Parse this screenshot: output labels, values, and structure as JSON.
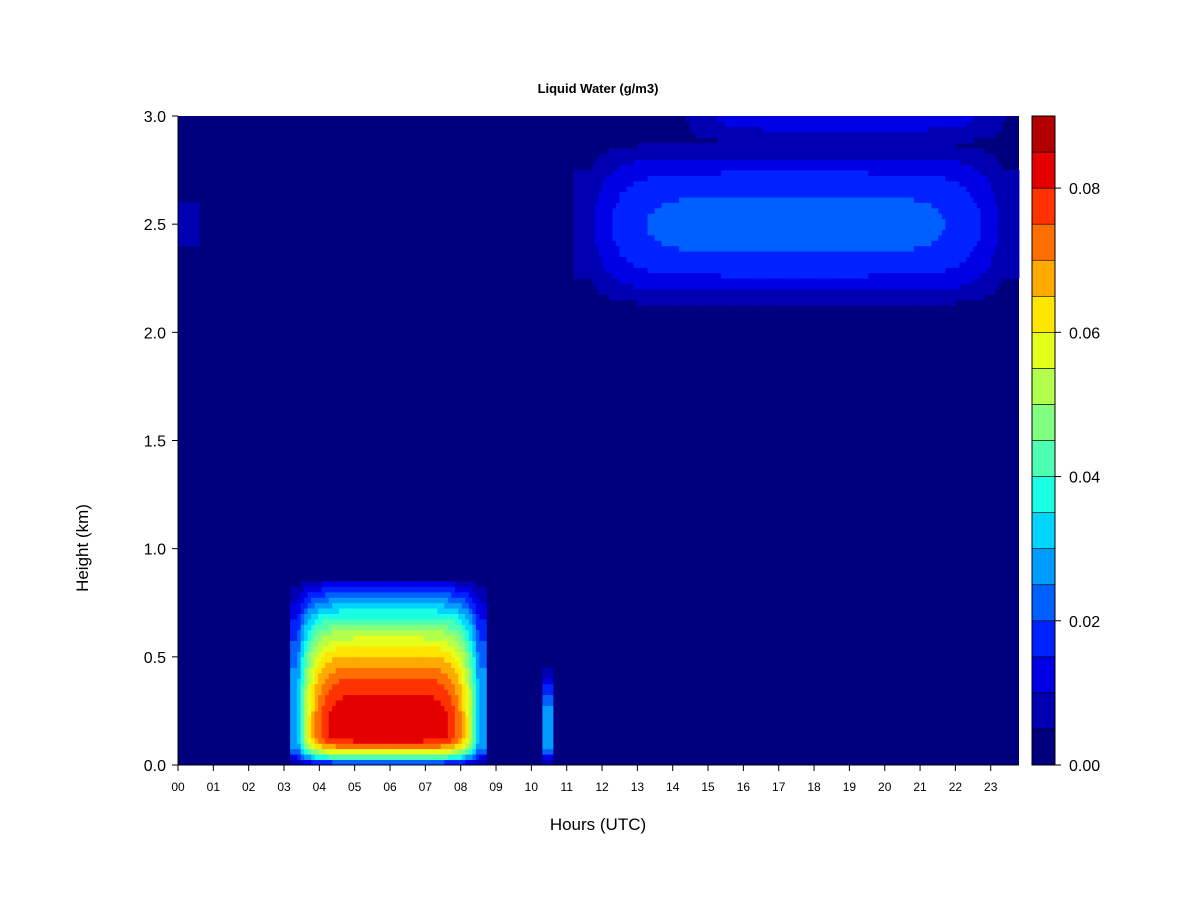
{
  "chart_data": {
    "type": "heatmap",
    "title": "Liquid Water (g/m3)",
    "xlabel": "Hours (UTC)",
    "ylabel": "Height (km)",
    "xlim": [
      0,
      23.8
    ],
    "ylim": [
      0,
      3.0
    ],
    "x_ticks": [
      {
        "value": 0,
        "label": "00"
      },
      {
        "value": 1,
        "label": "01"
      },
      {
        "value": 2,
        "label": "02"
      },
      {
        "value": 3,
        "label": "03"
      },
      {
        "value": 4,
        "label": "04"
      },
      {
        "value": 5,
        "label": "05"
      },
      {
        "value": 6,
        "label": "06"
      },
      {
        "value": 7,
        "label": "07"
      },
      {
        "value": 8,
        "label": "08"
      },
      {
        "value": 9,
        "label": "09"
      },
      {
        "value": 10,
        "label": "10"
      },
      {
        "value": 11,
        "label": "11"
      },
      {
        "value": 12,
        "label": "12"
      },
      {
        "value": 13,
        "label": "13"
      },
      {
        "value": 14,
        "label": "14"
      },
      {
        "value": 15,
        "label": "15"
      },
      {
        "value": 16,
        "label": "16"
      },
      {
        "value": 17,
        "label": "17"
      },
      {
        "value": 18,
        "label": "18"
      },
      {
        "value": 19,
        "label": "19"
      },
      {
        "value": 20,
        "label": "20"
      },
      {
        "value": 21,
        "label": "21"
      },
      {
        "value": 22,
        "label": "22"
      },
      {
        "value": 23,
        "label": "23"
      }
    ],
    "y_ticks": [
      {
        "value": 0.0,
        "label": "0.0"
      },
      {
        "value": 0.5,
        "label": "0.5"
      },
      {
        "value": 1.0,
        "label": "1.0"
      },
      {
        "value": 1.5,
        "label": "1.5"
      },
      {
        "value": 2.0,
        "label": "2.0"
      },
      {
        "value": 2.5,
        "label": "2.5"
      },
      {
        "value": 3.0,
        "label": "3.0"
      }
    ],
    "colorbar": {
      "range": [
        0.0,
        0.09
      ],
      "levels": [
        0.0,
        0.005,
        0.01,
        0.015,
        0.02,
        0.025,
        0.03,
        0.035,
        0.04,
        0.045,
        0.05,
        0.055,
        0.06,
        0.065,
        0.07,
        0.075,
        0.08,
        0.085,
        0.09
      ],
      "colors": [
        "#00007f",
        "#0000b2",
        "#0000e5",
        "#0022ff",
        "#0060ff",
        "#009bff",
        "#00d4ff",
        "#1affe4",
        "#4dffb2",
        "#80ff80",
        "#b2ff4d",
        "#e4ff1a",
        "#ffe600",
        "#ffaa00",
        "#ff6f00",
        "#ff3200",
        "#e50000",
        "#b20000"
      ],
      "ticks": [
        {
          "value": 0.0,
          "label": "0.00"
        },
        {
          "value": 0.02,
          "label": "0.02"
        },
        {
          "value": 0.04,
          "label": "0.04"
        },
        {
          "value": 0.06,
          "label": "0.06"
        },
        {
          "value": 0.08,
          "label": "0.08"
        }
      ]
    },
    "features": [
      {
        "x_range": [
          3.2,
          8.7
        ],
        "y_range": [
          0.0,
          0.85
        ],
        "peak_height": 0.15,
        "peak_value": 0.085
      },
      {
        "x_range": [
          11.2,
          23.8
        ],
        "y_range": [
          2.1,
          2.9
        ],
        "peak_height": 2.5,
        "peak_value": 0.022
      },
      {
        "x_range": [
          14.0,
          23.8
        ],
        "y_range": [
          2.85,
          3.0
        ],
        "peak_height": 3.0,
        "peak_value": 0.012
      },
      {
        "x_range": [
          0.0,
          0.6
        ],
        "y_range": [
          2.35,
          2.65
        ],
        "peak_height": 2.5,
        "peak_value": 0.008
      },
      {
        "x_range": [
          10.3,
          10.6
        ],
        "y_range": [
          0.0,
          0.45
        ],
        "peak_height": 0.15,
        "peak_value": 0.03
      }
    ]
  }
}
